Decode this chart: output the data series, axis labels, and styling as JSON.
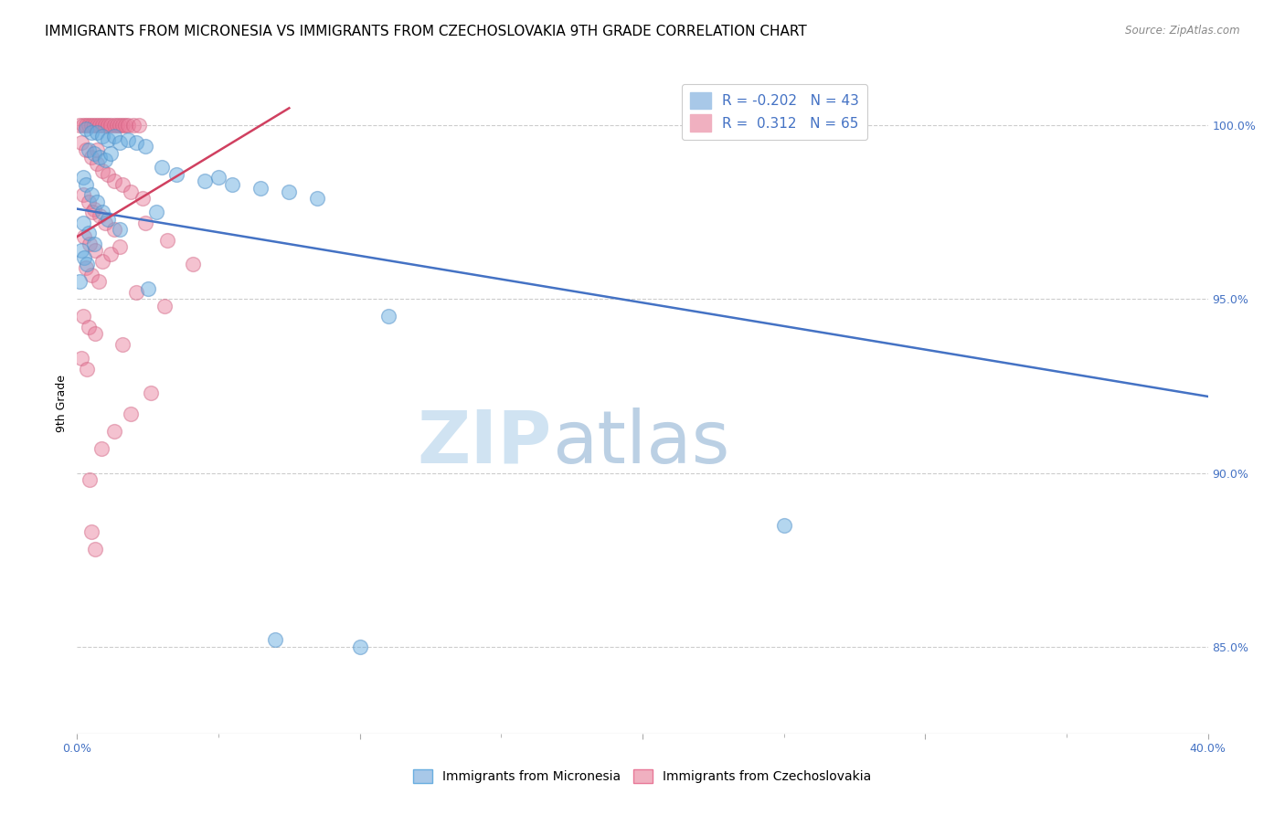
{
  "title": "IMMIGRANTS FROM MICRONESIA VS IMMIGRANTS FROM CZECHOSLOVAKIA 9TH GRADE CORRELATION CHART",
  "source": "Source: ZipAtlas.com",
  "ylabel": "9th Grade",
  "xlim": [
    0.0,
    40.0
  ],
  "ylim": [
    82.5,
    101.5
  ],
  "xtick_labels": [
    "0.0%",
    "",
    "",
    "",
    "40.0%"
  ],
  "xtick_values": [
    0.0,
    10.0,
    20.0,
    30.0,
    40.0
  ],
  "ytick_labels": [
    "85.0%",
    "90.0%",
    "95.0%",
    "100.0%"
  ],
  "ytick_values": [
    85.0,
    90.0,
    95.0,
    100.0
  ],
  "blue_scatter": [
    [
      0.3,
      99.9
    ],
    [
      0.5,
      99.8
    ],
    [
      0.7,
      99.8
    ],
    [
      0.9,
      99.7
    ],
    [
      1.1,
      99.6
    ],
    [
      1.3,
      99.7
    ],
    [
      1.5,
      99.5
    ],
    [
      1.8,
      99.6
    ],
    [
      2.1,
      99.5
    ],
    [
      2.4,
      99.4
    ],
    [
      0.4,
      99.3
    ],
    [
      0.6,
      99.2
    ],
    [
      0.8,
      99.1
    ],
    [
      1.0,
      99.0
    ],
    [
      1.2,
      99.2
    ],
    [
      3.0,
      98.8
    ],
    [
      3.5,
      98.6
    ],
    [
      4.5,
      98.4
    ],
    [
      5.0,
      98.5
    ],
    [
      5.5,
      98.3
    ],
    [
      6.5,
      98.2
    ],
    [
      7.5,
      98.1
    ],
    [
      8.5,
      97.9
    ],
    [
      0.2,
      98.5
    ],
    [
      0.3,
      98.3
    ],
    [
      0.5,
      98.0
    ],
    [
      0.7,
      97.8
    ],
    [
      0.9,
      97.5
    ],
    [
      1.1,
      97.3
    ],
    [
      1.5,
      97.0
    ],
    [
      0.2,
      97.2
    ],
    [
      0.4,
      96.9
    ],
    [
      0.6,
      96.6
    ],
    [
      0.15,
      96.4
    ],
    [
      0.25,
      96.2
    ],
    [
      0.35,
      96.0
    ],
    [
      2.5,
      95.3
    ],
    [
      11.0,
      94.5
    ],
    [
      25.0,
      88.5
    ],
    [
      10.0,
      85.0
    ],
    [
      0.1,
      95.5
    ],
    [
      7.0,
      85.2
    ],
    [
      2.8,
      97.5
    ]
  ],
  "pink_scatter": [
    [
      0.1,
      100.0
    ],
    [
      0.2,
      100.0
    ],
    [
      0.3,
      100.0
    ],
    [
      0.4,
      100.0
    ],
    [
      0.5,
      100.0
    ],
    [
      0.6,
      100.0
    ],
    [
      0.7,
      100.0
    ],
    [
      0.8,
      100.0
    ],
    [
      0.9,
      100.0
    ],
    [
      1.0,
      100.0
    ],
    [
      1.1,
      100.0
    ],
    [
      1.2,
      100.0
    ],
    [
      1.3,
      100.0
    ],
    [
      1.4,
      100.0
    ],
    [
      1.5,
      100.0
    ],
    [
      1.6,
      100.0
    ],
    [
      1.7,
      100.0
    ],
    [
      1.8,
      100.0
    ],
    [
      2.0,
      100.0
    ],
    [
      2.2,
      100.0
    ],
    [
      0.15,
      99.5
    ],
    [
      0.3,
      99.3
    ],
    [
      0.5,
      99.1
    ],
    [
      0.7,
      98.9
    ],
    [
      0.9,
      98.7
    ],
    [
      1.1,
      98.6
    ],
    [
      1.3,
      98.4
    ],
    [
      1.6,
      98.3
    ],
    [
      1.9,
      98.1
    ],
    [
      2.3,
      97.9
    ],
    [
      0.2,
      98.0
    ],
    [
      0.4,
      97.8
    ],
    [
      0.6,
      97.6
    ],
    [
      0.8,
      97.4
    ],
    [
      1.0,
      97.2
    ],
    [
      1.3,
      97.0
    ],
    [
      0.25,
      96.8
    ],
    [
      0.45,
      96.6
    ],
    [
      0.65,
      96.4
    ],
    [
      0.9,
      96.1
    ],
    [
      1.2,
      96.3
    ],
    [
      0.3,
      95.9
    ],
    [
      0.5,
      95.7
    ],
    [
      0.75,
      95.5
    ],
    [
      2.1,
      95.2
    ],
    [
      3.1,
      94.8
    ],
    [
      0.2,
      94.5
    ],
    [
      0.4,
      94.2
    ],
    [
      0.65,
      94.0
    ],
    [
      1.6,
      93.7
    ],
    [
      0.15,
      93.3
    ],
    [
      0.35,
      93.0
    ],
    [
      1.9,
      91.7
    ],
    [
      0.5,
      88.3
    ],
    [
      3.2,
      96.7
    ],
    [
      4.1,
      96.0
    ],
    [
      2.6,
      92.3
    ],
    [
      1.3,
      91.2
    ],
    [
      0.85,
      90.7
    ],
    [
      0.45,
      89.8
    ],
    [
      0.65,
      87.8
    ],
    [
      1.5,
      96.5
    ],
    [
      0.55,
      97.5
    ],
    [
      2.4,
      97.2
    ],
    [
      0.7,
      99.3
    ]
  ],
  "blue_line": {
    "x0": 0.0,
    "y0": 97.6,
    "x1": 40.0,
    "y1": 92.2
  },
  "pink_line": {
    "x0": 0.0,
    "y0": 96.8,
    "x1": 7.5,
    "y1": 100.5
  },
  "blue_scatter_color": "#6aaee0",
  "blue_scatter_edge": "#5090c8",
  "pink_scatter_color": "#e87898",
  "pink_scatter_edge": "#d06080",
  "blue_line_color": "#4472c4",
  "pink_line_color": "#d04060",
  "watermark_zip": "ZIP",
  "watermark_atlas": "atlas",
  "title_fontsize": 11,
  "axis_label_fontsize": 9,
  "tick_fontsize": 9,
  "legend_fontsize": 11
}
